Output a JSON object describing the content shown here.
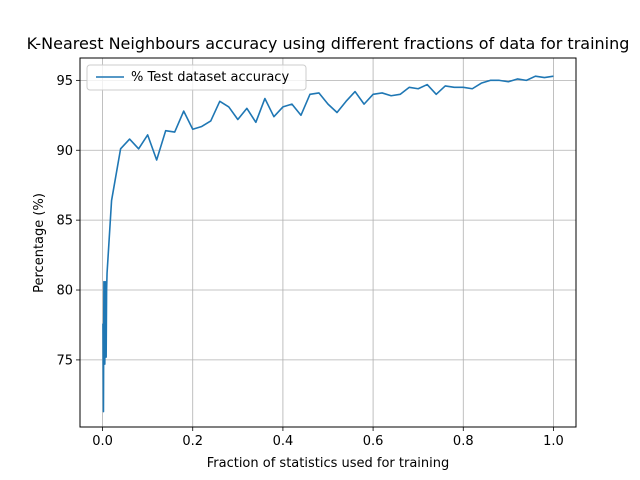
{
  "chart_data": {
    "type": "line",
    "title": "K-Nearest Neighbours accuracy using different fractions of data for training",
    "xlabel": "Fraction of statistics used for training",
    "ylabel": "Percentage (%)",
    "xlim": [
      -0.05,
      1.05
    ],
    "ylim": [
      70.2,
      96.6
    ],
    "xticks": [
      0.0,
      0.2,
      0.4,
      0.6,
      0.8,
      1.0
    ],
    "xtick_labels": [
      "0.0",
      "0.2",
      "0.4",
      "0.6",
      "0.8",
      "1.0"
    ],
    "yticks": [
      75,
      80,
      85,
      90,
      95
    ],
    "ytick_labels": [
      "75",
      "80",
      "85",
      "90",
      "95"
    ],
    "grid": true,
    "legend_position": "upper-left",
    "series": [
      {
        "name": "% Test dataset accuracy",
        "color": "#1f77b4",
        "x": [
          0.001,
          0.002,
          0.003,
          0.004,
          0.005,
          0.006,
          0.007,
          0.008,
          0.009,
          0.01,
          0.02,
          0.04,
          0.06,
          0.08,
          0.1,
          0.12,
          0.14,
          0.16,
          0.18,
          0.2,
          0.22,
          0.24,
          0.26,
          0.28,
          0.3,
          0.32,
          0.34,
          0.36,
          0.38,
          0.4,
          0.42,
          0.44,
          0.46,
          0.48,
          0.5,
          0.52,
          0.54,
          0.56,
          0.58,
          0.6,
          0.62,
          0.64,
          0.66,
          0.68,
          0.7,
          0.72,
          0.74,
          0.76,
          0.78,
          0.8,
          0.82,
          0.84,
          0.86,
          0.88,
          0.9,
          0.92,
          0.94,
          0.96,
          0.98,
          1.0
        ],
        "y": [
          77.6,
          71.3,
          80.6,
          76.5,
          74.7,
          80.6,
          78.0,
          75.2,
          80.0,
          81.2,
          86.4,
          90.1,
          90.8,
          90.1,
          91.1,
          89.3,
          91.4,
          91.3,
          92.8,
          91.5,
          91.7,
          92.1,
          93.5,
          93.1,
          92.2,
          93.0,
          92.0,
          93.7,
          92.4,
          93.1,
          93.3,
          92.5,
          94.0,
          94.1,
          93.3,
          92.7,
          93.5,
          94.2,
          93.3,
          94.0,
          94.1,
          93.9,
          94.0,
          94.5,
          94.4,
          94.7,
          94.0,
          94.6,
          94.5,
          94.5,
          94.4,
          94.8,
          95.0,
          95.0,
          94.9,
          95.1,
          95.0,
          95.3,
          95.2,
          95.3
        ]
      }
    ]
  }
}
